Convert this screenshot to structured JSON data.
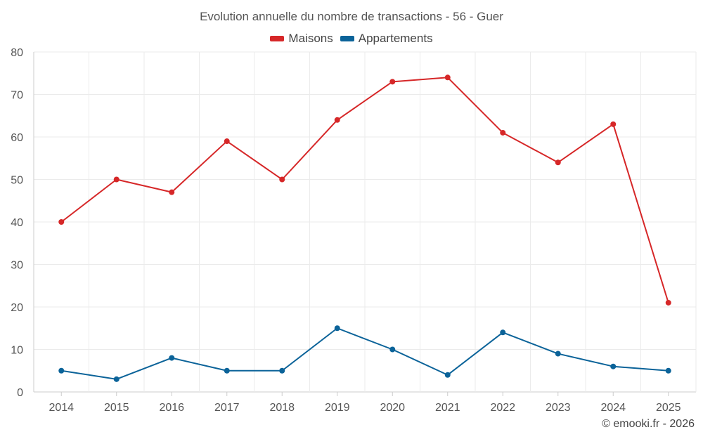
{
  "chart_data": {
    "type": "line",
    "title": "Evolution annuelle du nombre de transactions - 56 - Guer",
    "xlabel": "",
    "ylabel": "",
    "categories": [
      "2014",
      "2015",
      "2016",
      "2017",
      "2018",
      "2019",
      "2020",
      "2021",
      "2022",
      "2023",
      "2024",
      "2025"
    ],
    "ylim": [
      0,
      80
    ],
    "yticks": [
      0,
      10,
      20,
      30,
      40,
      50,
      60,
      70,
      80
    ],
    "grid": true,
    "legend_position": "top-center",
    "series": [
      {
        "name": "Maisons",
        "color": "#d62728",
        "values": [
          40,
          50,
          47,
          59,
          50,
          64,
          73,
          74,
          61,
          54,
          63,
          21
        ]
      },
      {
        "name": "Appartements",
        "color": "#0b6399",
        "values": [
          5,
          3,
          8,
          5,
          5,
          15,
          10,
          4,
          14,
          9,
          6,
          5
        ]
      }
    ]
  },
  "credit": "© emooki.fr - 2026"
}
